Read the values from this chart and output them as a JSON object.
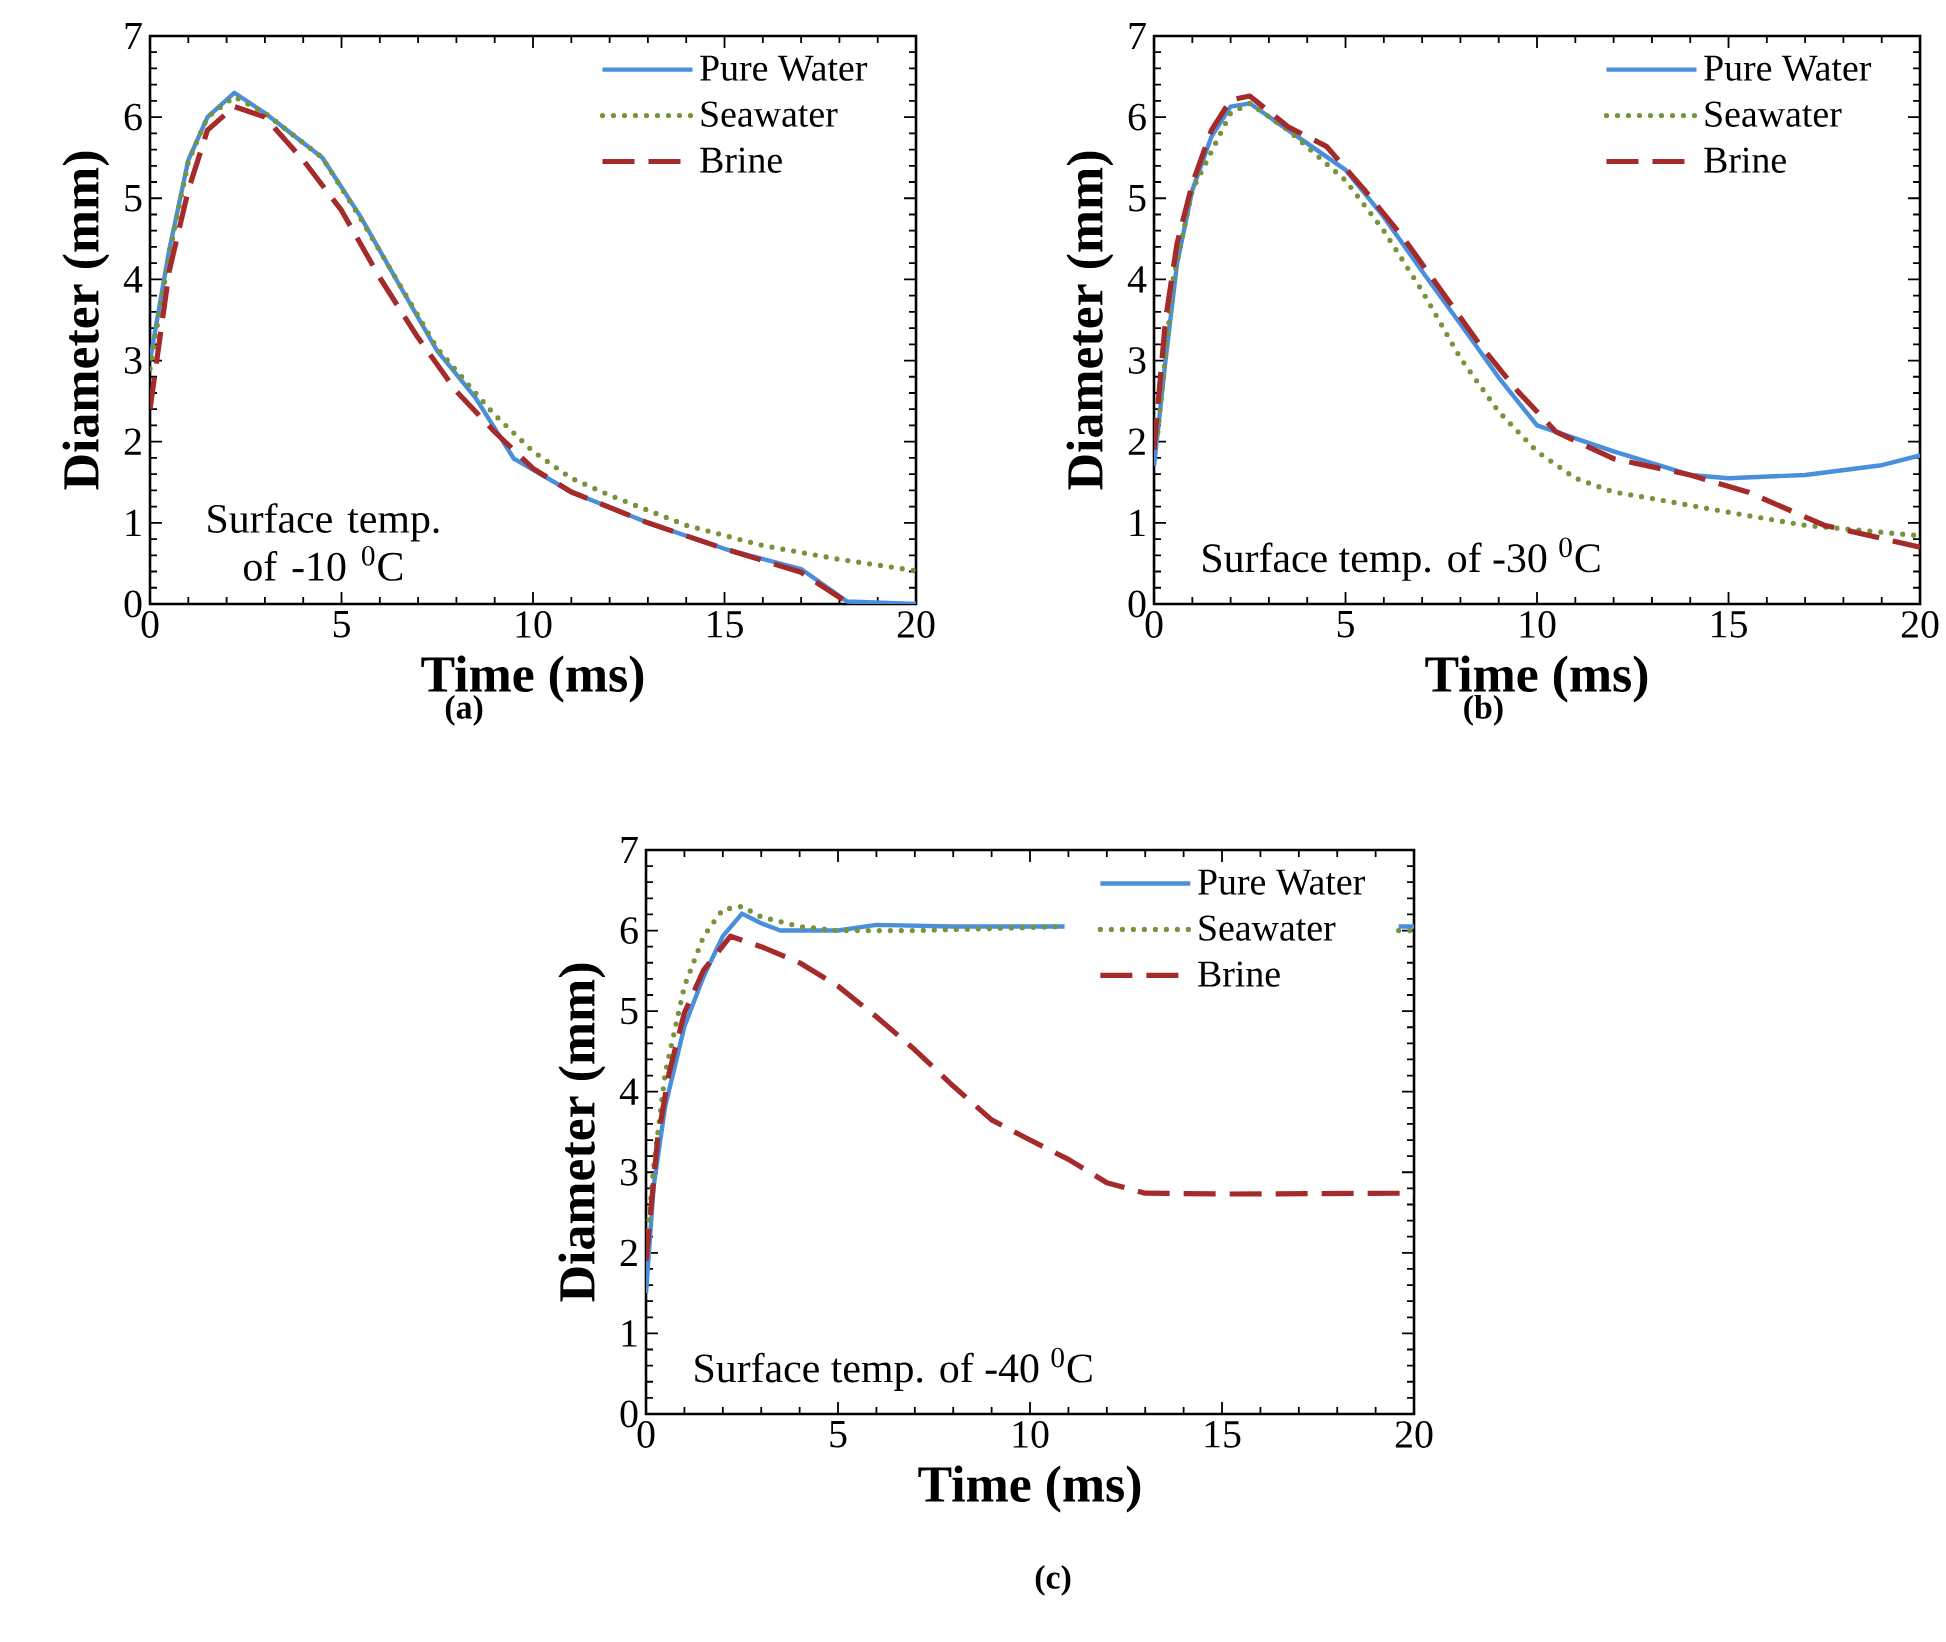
{
  "chart_data": [
    {
      "type": "line",
      "xlabel": "Time (ms)",
      "ylabel": "Diameter (mm)",
      "xlim": [
        0,
        20
      ],
      "ylim": [
        0,
        7
      ],
      "xticks": [
        0,
        5,
        10,
        15,
        20
      ],
      "yticks": [
        0,
        1,
        2,
        3,
        4,
        5,
        6,
        7
      ],
      "legend": "top right",
      "grid": false,
      "annotations": [
        "Surface temp. of -10 $^{0}$C",
        "(a)"
      ],
      "series": [
        {
          "name": "Pure Water",
          "color": "#4a8fdb",
          "line_style": "solid",
          "x": [
            0,
            0.5,
            1,
            1.5,
            2.2,
            3,
            4.5,
            5.5,
            6.5,
            7.5,
            8.5,
            9.5,
            11,
            13,
            15,
            17,
            18.2,
            20
          ],
          "values": [
            3.0,
            4.36,
            5.47,
            6.0,
            6.3,
            6.05,
            5.5,
            4.77,
            3.94,
            3.12,
            2.54,
            1.79,
            1.38,
            1.0,
            0.68,
            0.43,
            0.03,
            0.0
          ]
        },
        {
          "name": "Seawater",
          "color": "#77933c",
          "line_style": "dotted",
          "x": [
            0,
            0.5,
            1,
            1.5,
            2.2,
            3,
            4.5,
            5.5,
            6.5,
            7.5,
            8.5,
            9,
            10,
            11,
            12,
            14,
            16,
            18,
            20
          ],
          "values": [
            2.9,
            4.3,
            5.45,
            6.0,
            6.25,
            6.05,
            5.5,
            4.75,
            3.95,
            3.15,
            2.6,
            2.33,
            1.88,
            1.55,
            1.34,
            0.97,
            0.72,
            0.55,
            0.41
          ]
        },
        {
          "name": "Brine",
          "color": "#a52a2a",
          "line_style": "dashed",
          "x": [
            0,
            0.5,
            1,
            1.5,
            2.2,
            3,
            4,
            5,
            6,
            7,
            8,
            9,
            10,
            11,
            13,
            15,
            17,
            18.2
          ],
          "values": [
            2.4,
            4.1,
            5.1,
            5.84,
            6.13,
            6.0,
            5.47,
            4.85,
            4.02,
            3.28,
            2.62,
            2.12,
            1.67,
            1.38,
            1.0,
            0.68,
            0.39,
            0.02
          ]
        }
      ]
    },
    {
      "type": "line",
      "xlabel": "Time (ms)",
      "ylabel": "Diameter (mm)",
      "xlim": [
        0,
        20
      ],
      "ylim": [
        0,
        7
      ],
      "xticks": [
        0,
        5,
        10,
        15,
        20
      ],
      "yticks": [
        0,
        1,
        2,
        3,
        4,
        5,
        6,
        7
      ],
      "legend": "top right",
      "grid": false,
      "annotations": [
        "Surface temp. of -30 $^{0}$C",
        "(b)"
      ],
      "series": [
        {
          "name": "Pure Water",
          "color": "#4a8fdb",
          "line_style": "solid",
          "x": [
            0,
            0.3,
            0.6,
            1,
            1.5,
            2,
            2.5,
            3.5,
            5,
            6,
            7,
            8,
            9,
            10,
            12,
            14,
            15,
            17,
            19,
            20
          ],
          "values": [
            1.7,
            3.0,
            4.19,
            5.1,
            5.76,
            6.13,
            6.17,
            5.84,
            5.35,
            4.77,
            4.1,
            3.45,
            2.79,
            2.2,
            1.88,
            1.59,
            1.55,
            1.59,
            1.71,
            1.83
          ]
        },
        {
          "name": "Seawater",
          "color": "#77933c",
          "line_style": "dotted",
          "x": [
            0.1,
            0.5,
            1,
            2,
            2.5,
            3.5,
            5,
            6,
            7,
            8,
            9,
            10,
            11,
            12,
            13,
            15,
            17,
            20
          ],
          "values": [
            2.12,
            4.0,
            5.1,
            6.05,
            6.17,
            5.84,
            5.22,
            4.6,
            3.86,
            3.03,
            2.37,
            1.88,
            1.55,
            1.38,
            1.3,
            1.13,
            0.97,
            0.84
          ]
        },
        {
          "name": "Brine",
          "color": "#a52a2a",
          "line_style": "dashed",
          "x": [
            0,
            0.3,
            0.6,
            1,
            1.5,
            2,
            2.5,
            3.5,
            4.5,
            5.5,
            6.5,
            7.5,
            8.5,
            9.5,
            10.5,
            12,
            14,
            15.5,
            17.5,
            20
          ],
          "values": [
            1.9,
            3.5,
            4.44,
            5.18,
            5.84,
            6.21,
            6.26,
            5.88,
            5.64,
            5.1,
            4.52,
            3.86,
            3.2,
            2.62,
            2.12,
            1.79,
            1.59,
            1.38,
            0.97,
            0.7
          ]
        }
      ]
    },
    {
      "type": "line",
      "xlabel": "Time (ms)",
      "ylabel": "Diameter (mm)",
      "xlim": [
        0,
        20
      ],
      "ylim": [
        0,
        7
      ],
      "xticks": [
        0,
        5,
        10,
        15,
        20
      ],
      "yticks": [
        0,
        1,
        2,
        3,
        4,
        5,
        6,
        7
      ],
      "legend": "top right",
      "grid": false,
      "annotations": [
        "Surface temp. of -40 $^{0}$C",
        "(c)"
      ],
      "series": [
        {
          "name": "Pure Water",
          "color": "#4a8fdb",
          "line_style": "solid",
          "x": [
            0,
            0.2,
            0.5,
            1,
            1.5,
            2,
            2.5,
            3,
            3.5,
            5,
            6,
            8,
            10.9,
            15,
            19.6,
            20
          ],
          "values": [
            1.5,
            2.83,
            3.82,
            4.81,
            5.43,
            5.93,
            6.21,
            6.09,
            6.0,
            6.0,
            6.07,
            6.05,
            6.05,
            null,
            6.05,
            6.05
          ]
        },
        {
          "name": "Seawater",
          "color": "#77933c",
          "line_style": "dotted",
          "x": [
            0,
            0.2,
            0.5,
            1,
            1.5,
            2,
            2.5,
            3,
            4,
            5,
            7,
            10.9,
            15,
            19.6,
            20
          ],
          "values": [
            2.0,
            3.07,
            4.23,
            5.31,
            5.93,
            6.26,
            6.3,
            6.17,
            6.05,
            6.0,
            6.0,
            6.05,
            null,
            6.0,
            6.0
          ]
        },
        {
          "name": "Brine",
          "color": "#a52a2a",
          "line_style": "dashed",
          "x": [
            0,
            0.3,
            0.6,
            1,
            1.5,
            2.2,
            3,
            4,
            5,
            6,
            7,
            8,
            9,
            10,
            11,
            12,
            13,
            15,
            20
          ],
          "values": [
            1.9,
            3.4,
            4.23,
            4.98,
            5.51,
            5.93,
            5.8,
            5.6,
            5.31,
            4.93,
            4.52,
            4.07,
            3.65,
            3.4,
            3.16,
            2.87,
            2.74,
            2.73,
            2.74
          ]
        }
      ]
    }
  ]
}
